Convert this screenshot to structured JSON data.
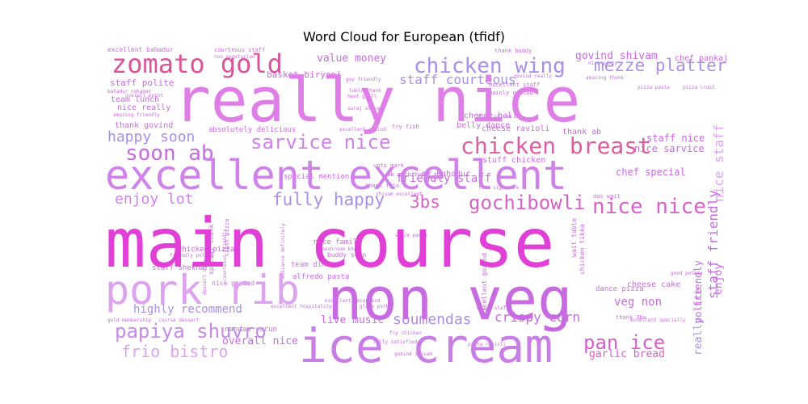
{
  "chart_data": {
    "type": "wordcloud",
    "title": "Word Cloud for European (tfidf)",
    "words": [
      {
        "text": "main course",
        "weight": 100,
        "color": "#e040d6"
      },
      {
        "text": "really nice",
        "weight": 90,
        "color": "#e07ee8"
      },
      {
        "text": "non veg",
        "weight": 78,
        "color": "#c86ae0"
      },
      {
        "text": "ice cream",
        "weight": 72,
        "color": "#c97ee6"
      },
      {
        "text": "excellent excellent",
        "weight": 64,
        "color": "#cf82e8"
      },
      {
        "text": "pork rib",
        "weight": 58,
        "color": "#dca4ee"
      },
      {
        "text": "zomato gold",
        "weight": 40,
        "color": "#d9559a"
      },
      {
        "text": "chicken breast",
        "weight": 36,
        "color": "#dd5ea0"
      },
      {
        "text": "chicken wing",
        "weight": 32,
        "color": "#a98fe8"
      },
      {
        "text": "papiya shuvro",
        "weight": 30,
        "color": "#c48ce8"
      },
      {
        "text": "soon ab",
        "weight": 30,
        "color": "#c86ae0"
      },
      {
        "text": "nice nice",
        "weight": 30,
        "color": "#d562c8"
      },
      {
        "text": "gochibowli",
        "weight": 28,
        "color": "#d562c8"
      },
      {
        "text": "pan ice",
        "weight": 28,
        "color": "#d562c8"
      },
      {
        "text": "sarvice nice",
        "weight": 26,
        "color": "#cf82e8"
      },
      {
        "text": "mezze platter",
        "weight": 24,
        "color": "#a98fe8"
      },
      {
        "text": "fully happy",
        "weight": 24,
        "color": "#a98fe8"
      },
      {
        "text": "3bs",
        "weight": 24,
        "color": "#d562c8"
      },
      {
        "text": "frio bistro",
        "weight": 22,
        "color": "#dca4ee"
      },
      {
        "text": "happy soon",
        "weight": 20,
        "color": "#a98fe8"
      },
      {
        "text": "enjoy lot",
        "weight": 20,
        "color": "#cf82e8"
      },
      {
        "text": "soumen",
        "weight": 20,
        "color": "#a98fe8"
      },
      {
        "text": "das",
        "weight": 20,
        "color": "#a98fe8"
      },
      {
        "text": "crispy corn",
        "weight": 18,
        "color": "#c86ae0"
      },
      {
        "text": "staff courteous",
        "weight": 18,
        "color": "#a98fe8"
      },
      {
        "text": "highly recommend",
        "weight": 16,
        "color": "#a98fe8"
      },
      {
        "text": "veg non",
        "weight": 16,
        "color": "#c86ae0"
      },
      {
        "text": "staff friendly",
        "weight": 16,
        "color": "#c86ae0"
      },
      {
        "text": "nice staff",
        "weight": 16,
        "color": "#dca4ee"
      },
      {
        "text": "value money",
        "weight": 14,
        "color": "#c86ae0"
      },
      {
        "text": "govind shivam",
        "weight": 14,
        "color": "#c86ae0"
      },
      {
        "text": "friendly staff",
        "weight": 14,
        "color": "#c86ae0"
      },
      {
        "text": "live music",
        "weight": 14,
        "color": "#c86ae0"
      },
      {
        "text": "garlic bread",
        "weight": 14,
        "color": "#d562c8"
      },
      {
        "text": "overall nice",
        "weight": 14,
        "color": "#c86ae0"
      },
      {
        "text": "really",
        "weight": 14,
        "color": "#a98fe8"
      },
      {
        "text": "enjoy",
        "weight": 13,
        "color": "#c86ae0"
      },
      {
        "text": "polite",
        "weight": 13,
        "color": "#c86ae0"
      },
      {
        "text": "friendly",
        "weight": 13,
        "color": "#c86ae0"
      },
      {
        "text": "staff nice",
        "weight": 12,
        "color": "#c86ae0"
      },
      {
        "text": "nice sarvice",
        "weight": 12,
        "color": "#c86ae0"
      },
      {
        "text": "chef special",
        "weight": 12,
        "color": "#c86ae0"
      },
      {
        "text": "basket biryani",
        "weight": 11,
        "color": "#c86ae0"
      },
      {
        "text": "staff polite",
        "weight": 11,
        "color": "#c86ae0"
      },
      {
        "text": "chef pankaj",
        "weight": 10,
        "color": "#c86ae0"
      },
      {
        "text": "thank govind",
        "weight": 10,
        "color": "#c86ae0"
      },
      {
        "text": "team lunch",
        "weight": 10,
        "color": "#c86ae0"
      },
      {
        "text": "nice really",
        "weight": 10,
        "color": "#c86ae0"
      },
      {
        "text": "cheese ball",
        "weight": 10,
        "color": "#c86ae0"
      },
      {
        "text": "belly dance",
        "weight": 10,
        "color": "#c86ae0"
      },
      {
        "text": "mr bahadur",
        "weight": 10,
        "color": "#c86ae0"
      },
      {
        "text": "cheese ravioli",
        "weight": 10,
        "color": "#c86ae0"
      },
      {
        "text": "thank ab",
        "weight": 10,
        "color": "#c86ae0"
      },
      {
        "text": "stuff chicken",
        "weight": 10,
        "color": "#c86ae0"
      },
      {
        "text": "absolutely delicious",
        "weight": 9,
        "color": "#c86ae0"
      },
      {
        "text": "special mention",
        "weight": 9,
        "color": "#c86ae0"
      },
      {
        "text": "cheese cake",
        "weight": 10,
        "color": "#c86ae0"
      },
      {
        "text": "dance pizza",
        "weight": 9,
        "color": "#c86ae0"
      },
      {
        "text": "chicken pizza",
        "weight": 9,
        "color": "#c86ae0"
      },
      {
        "text": "staff shekhar",
        "weight": 9,
        "color": "#c86ae0"
      },
      {
        "text": "alfredo pasta",
        "weight": 9,
        "color": "#c86ae0"
      },
      {
        "text": "team dinner",
        "weight": 9,
        "color": "#c86ae0"
      },
      {
        "text": "nice family",
        "weight": 9,
        "color": "#c86ae0"
      },
      {
        "text": "nandan varun",
        "weight": 9,
        "color": "#c86ae0"
      },
      {
        "text": "nice govind",
        "weight": 8,
        "color": "#c86ae0"
      },
      {
        "text": "buddy soon",
        "weight": 8,
        "color": "#c86ae0"
      },
      {
        "text": "chicken tikka",
        "weight": 8,
        "color": "#c86ae0"
      },
      {
        "text": "wait table",
        "weight": 8,
        "color": "#c86ae0"
      },
      {
        "text": "excellent govind",
        "weight": 8,
        "color": "#c86ae0"
      },
      {
        "text": "excellent bahadur",
        "weight": 8,
        "color": "#c86ae0"
      },
      {
        "text": "courteous staff",
        "weight": 7,
        "color": "#c86ae0"
      },
      {
        "text": "thank buddy",
        "weight": 7,
        "color": "#c86ae0"
      },
      {
        "text": "excellent staff",
        "weight": 7,
        "color": "#c86ae0"
      },
      {
        "text": "mainly gobind",
        "weight": 7,
        "color": "#c86ae0"
      },
      {
        "text": "fry fish",
        "weight": 7,
        "color": "#c86ae0"
      },
      {
        "text": "thank frio",
        "weight": 7,
        "color": "#c86ae0"
      },
      {
        "text": "upto mark",
        "weight": 7,
        "color": "#c86ae0"
      },
      {
        "text": "ab gachibowli",
        "weight": 7,
        "color": "#c86ae0"
      },
      {
        "text": "shivam excellent",
        "weight": 6,
        "color": "#c86ae0"
      },
      {
        "text": "frio signature",
        "weight": 6,
        "color": "#c86ae0"
      },
      {
        "text": "mushroom khari",
        "weight": 6,
        "color": "#c86ae0"
      },
      {
        "text": "special thank",
        "weight": 8,
        "color": "#c86ae0"
      },
      {
        "text": "crust pizza",
        "weight": 7,
        "color": "#c86ae0"
      },
      {
        "text": "courteous friendly",
        "weight": 6,
        "color": "#c86ae0"
      },
      {
        "text": "das wait",
        "weight": 7,
        "color": "#c86ae0"
      },
      {
        "text": "thank 3bs",
        "weight": 7,
        "color": "#c86ae0"
      },
      {
        "text": "excellent recommend",
        "weight": 6,
        "color": "#c86ae0"
      },
      {
        "text": "excellent hospitality",
        "weight": 6,
        "color": "#c86ae0"
      },
      {
        "text": "glaze pork",
        "weight": 6,
        "color": "#c86ae0"
      },
      {
        "text": "fry chicken",
        "weight": 6,
        "color": "#c86ae0"
      },
      {
        "text": "fully satisfied",
        "weight": 6,
        "color": "#c86ae0"
      },
      {
        "text": "gobind shivam",
        "weight": 6,
        "color": "#c86ae0"
      },
      {
        "text": "enjoy staff",
        "weight": 6,
        "color": "#c86ae0"
      },
      {
        "text": "pasta ravioli",
        "weight": 6,
        "color": "#c86ae0"
      },
      {
        "text": "sauce pasta",
        "weight": 6,
        "color": "#c86ae0"
      },
      {
        "text": "gold membership",
        "weight": 6,
        "color": "#c86ae0"
      },
      {
        "text": "course dessert",
        "weight": 6,
        "color": "#c86ae0"
      },
      {
        "text": "excellent specially",
        "weight": 6,
        "color": "#c86ae0"
      },
      {
        "text": "thank shivam",
        "weight": 6,
        "color": "#c86ae0"
      },
      {
        "text": "nice party",
        "weight": 6,
        "color": "#c86ae0"
      },
      {
        "text": "non vegetarian",
        "weight": 6,
        "color": "#c86ae0"
      },
      {
        "text": "bahadur rahamat",
        "weight": 6,
        "color": "#c86ae0"
      },
      {
        "text": "guy friendly",
        "weight": 6,
        "color": "#c86ae0"
      },
      {
        "text": "govind really",
        "weight": 6,
        "color": "#c86ae0"
      },
      {
        "text": "table thank",
        "weight": 6,
        "color": "#c86ae0"
      },
      {
        "text": "heat grill",
        "weight": 6,
        "color": "#c86ae0"
      },
      {
        "text": "suraj shivam",
        "weight": 6,
        "color": "#c86ae0"
      },
      {
        "text": "amazing friendly",
        "weight": 6,
        "color": "#c86ae0"
      },
      {
        "text": "excellent gobind",
        "weight": 6,
        "color": "#c86ae0"
      },
      {
        "text": "ambiance definitely",
        "weight": 6,
        "color": "#c86ae0"
      },
      {
        "text": "pizza pasta",
        "weight": 6,
        "color": "#c86ae0"
      },
      {
        "text": "pizza crust",
        "weight": 6,
        "color": "#c86ae0"
      },
      {
        "text": "amazing thank",
        "weight": 6,
        "color": "#c86ae0"
      },
      {
        "text": "good polite",
        "weight": 6,
        "color": "#c86ae0"
      },
      {
        "text": "dessert nice",
        "weight": 6,
        "color": "#c86ae0"
      },
      {
        "text": "friendly polite",
        "weight": 6,
        "color": "#c86ae0"
      },
      {
        "text": "overall point",
        "weight": 6,
        "color": "#c86ae0"
      }
    ]
  }
}
